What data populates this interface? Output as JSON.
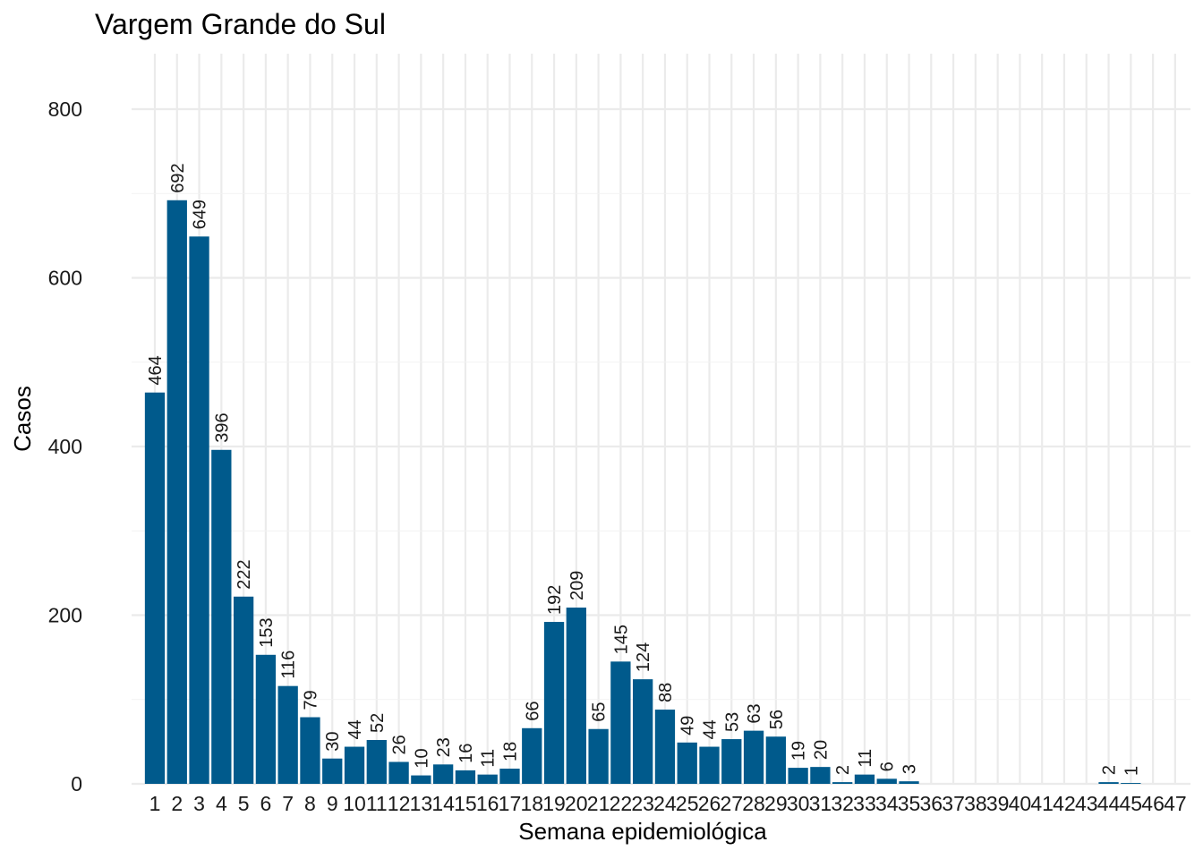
{
  "chart_data": {
    "type": "bar",
    "title": "Vargem Grande do Sul",
    "xlabel": "Semana epidemiológica",
    "ylabel": "Casos",
    "categories": [
      "1",
      "2",
      "3",
      "4",
      "5",
      "6",
      "7",
      "8",
      "9",
      "10",
      "11",
      "12",
      "13",
      "14",
      "15",
      "16",
      "17",
      "18",
      "19",
      "20",
      "21",
      "22",
      "23",
      "24",
      "25",
      "26",
      "27",
      "28",
      "29",
      "30",
      "31",
      "32",
      "33",
      "34",
      "35",
      "36",
      "37",
      "38",
      "39",
      "40",
      "41",
      "42",
      "43",
      "44",
      "45",
      "46",
      "47"
    ],
    "values": [
      464,
      692,
      649,
      396,
      222,
      153,
      116,
      79,
      30,
      44,
      52,
      26,
      10,
      23,
      16,
      11,
      18,
      66,
      192,
      209,
      65,
      145,
      124,
      88,
      49,
      44,
      53,
      63,
      56,
      19,
      20,
      2,
      11,
      6,
      3,
      0,
      0,
      0,
      0,
      0,
      0,
      0,
      0,
      2,
      1,
      0,
      0
    ],
    "data_labels": [
      "464",
      "692",
      "649",
      "396",
      "222",
      "153",
      "116",
      "79",
      "30",
      "44",
      "52",
      "26",
      "10",
      "23",
      "16",
      "11",
      "18",
      "66",
      "192",
      "209",
      "65",
      "145",
      "124",
      "88",
      "49",
      "44",
      "53",
      "63",
      "56",
      "19",
      "20",
      "2",
      "11",
      "6",
      "3",
      "",
      "",
      "",
      "",
      "",
      "",
      "",
      "",
      "2",
      "1",
      "",
      ""
    ],
    "yticks": [
      0,
      200,
      400,
      600,
      800
    ],
    "ylim": [
      0,
      865
    ],
    "grid": true,
    "legend": "none",
    "bar_color": "#005a8c"
  }
}
